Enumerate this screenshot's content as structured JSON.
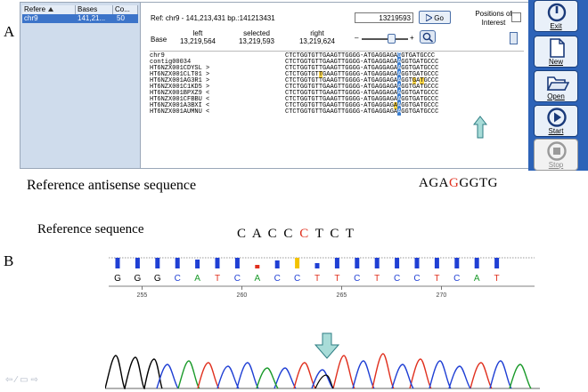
{
  "panel_a_label": "A",
  "panel_b_label": "B",
  "table": {
    "headers": [
      "Refere",
      "Bases",
      "Co..."
    ],
    "row": {
      "name": "chr9",
      "bases": "141,21...",
      "coverage": "50"
    }
  },
  "ref_line": "Ref:   chr9 - 141,213,431 bp.:141213431",
  "position_value": "13219593",
  "go_label": "Go",
  "positions_of_interest": "Positions of Interest",
  "base_label": "Base",
  "left_label": "left",
  "left_value": "13,219,564",
  "selected_label": "selected",
  "selected_value": "13,219,593",
  "right_label": "right",
  "right_value": "13,219,624",
  "zoom_minus": "–",
  "zoom_plus": "+",
  "read_names": [
    "chr9",
    "contig00034",
    "HT6NZX001CDYSL >",
    "HT6NZX001CLT01 >",
    "HT6NZX001AG3R1 >",
    "HT6NZX001C1KD5 >",
    "HT6NZX001BPXZ9 <",
    "HT6NZX001CFBBU <",
    "HT6NZX001A3BXI <",
    "HT6NZX001AUMNU <"
  ],
  "ref_seq": "CTCTGGTGTTGAAGTTGGGG-ATGAGGAGAGGTGATGCCC",
  "read_seq": "CTCTGGTGTTGAAGTTGGGG-ATGAGGAGAAGGTGATGCCC",
  "toolbar": {
    "exit": "Exit",
    "new": "New",
    "open": "Open",
    "start": "Start",
    "stop": "Stop"
  },
  "antisense_caption": "Reference antisense sequence",
  "antisense_seq": {
    "before": "AGA",
    "red": "G",
    "after": "GGTG"
  },
  "reference_caption": "Reference sequence",
  "reference_seq": {
    "before": "C A C C ",
    "red": "C",
    "after": " T C T"
  },
  "trace_bases": [
    "G",
    "G",
    "G",
    "C",
    "A",
    "T",
    "C",
    "A",
    "C",
    "C",
    "T",
    "T",
    "C",
    "T",
    "C",
    "C",
    "T",
    "C",
    "A",
    "T"
  ],
  "trace_positions": [
    "255",
    "260",
    "265",
    "270"
  ],
  "colors": {
    "G": "#000000",
    "A": "#1a9a2a",
    "T": "#e0301e",
    "C": "#1f3fd4",
    "toolbar": "#2d63b8",
    "highlight": "#3c7fd1",
    "arrow": "#a8dcd8"
  }
}
